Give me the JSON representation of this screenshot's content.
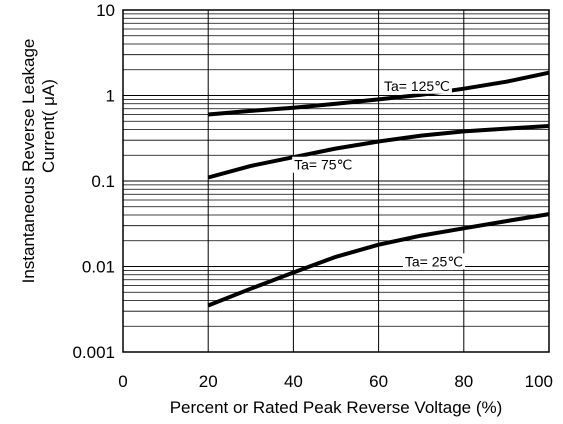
{
  "chart_data": {
    "type": "line",
    "title": "",
    "xlabel": "Percent or Rated Peak Reverse Voltage (%)",
    "ylabel_lines": [
      "Instantaneous Reverse Leakage",
      "Current( μA)"
    ],
    "xlim": [
      0,
      100
    ],
    "ylim": [
      0.001,
      10
    ],
    "yscale": "log",
    "grid": true,
    "x_ticks": [
      0,
      20,
      40,
      60,
      80,
      100
    ],
    "x_tick_labels": [
      "0",
      "20",
      "40",
      "60",
      "80",
      "100"
    ],
    "y_ticks": [
      0.001,
      0.01,
      0.1,
      1,
      10
    ],
    "y_tick_labels": [
      "0.001",
      "0.01",
      "0.1",
      "1",
      "10"
    ],
    "series": [
      {
        "name": "Ta= 125℃",
        "x": [
          20,
          30,
          40,
          50,
          60,
          70,
          80,
          90,
          100
        ],
        "y": [
          0.6,
          0.66,
          0.72,
          0.8,
          0.9,
          1.02,
          1.2,
          1.45,
          1.85
        ]
      },
      {
        "name": "Ta= 75℃",
        "x": [
          20,
          30,
          40,
          50,
          60,
          70,
          80,
          90,
          100
        ],
        "y": [
          0.11,
          0.15,
          0.19,
          0.24,
          0.29,
          0.34,
          0.38,
          0.41,
          0.44
        ]
      },
      {
        "name": "Ta= 25℃",
        "x": [
          20,
          30,
          40,
          50,
          60,
          70,
          80,
          90,
          100
        ],
        "y": [
          0.0035,
          0.0055,
          0.0085,
          0.013,
          0.018,
          0.023,
          0.028,
          0.034,
          0.041
        ]
      }
    ],
    "annotations": [
      {
        "text": "Ta= 125℃",
        "x": 69,
        "y": 1.3
      },
      {
        "text": "Ta= 75℃",
        "x": 47,
        "y": 0.155
      },
      {
        "text": "Ta= 25℃",
        "x": 73,
        "y": 0.0115
      }
    ]
  }
}
